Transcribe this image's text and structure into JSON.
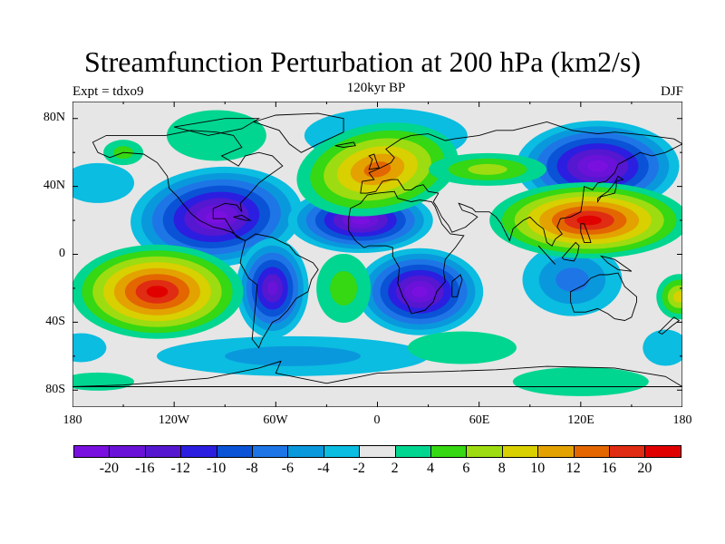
{
  "title": "Streamfunction Perturbation at 200 hPa (km2/s)",
  "left_label": "Expt = tdxo9",
  "center_label": "120kyr BP",
  "right_label": "DJF",
  "lat_ticks": [
    "80N",
    "40N",
    "0",
    "40S",
    "80S"
  ],
  "lon_ticks": [
    "180",
    "120W",
    "60W",
    "0",
    "60E",
    "120E",
    "180"
  ],
  "colorbar": {
    "colors": [
      "#7a10df",
      "#6a12d8",
      "#5517d0",
      "#2b1ee0",
      "#0a53d6",
      "#1e76e6",
      "#0a98dd",
      "#0bbde0",
      "#e6e6e6",
      "#00d690",
      "#36d713",
      "#9ddc10",
      "#d8d000",
      "#e3a200",
      "#e36600",
      "#e02c12",
      "#e00000"
    ],
    "labels": [
      "-20",
      "-16",
      "-12",
      "-10",
      "-8",
      "-6",
      "-4",
      "-2",
      "2",
      "4",
      "6",
      "8",
      "10",
      "12",
      "16",
      "20"
    ]
  },
  "units": "km2/s"
}
